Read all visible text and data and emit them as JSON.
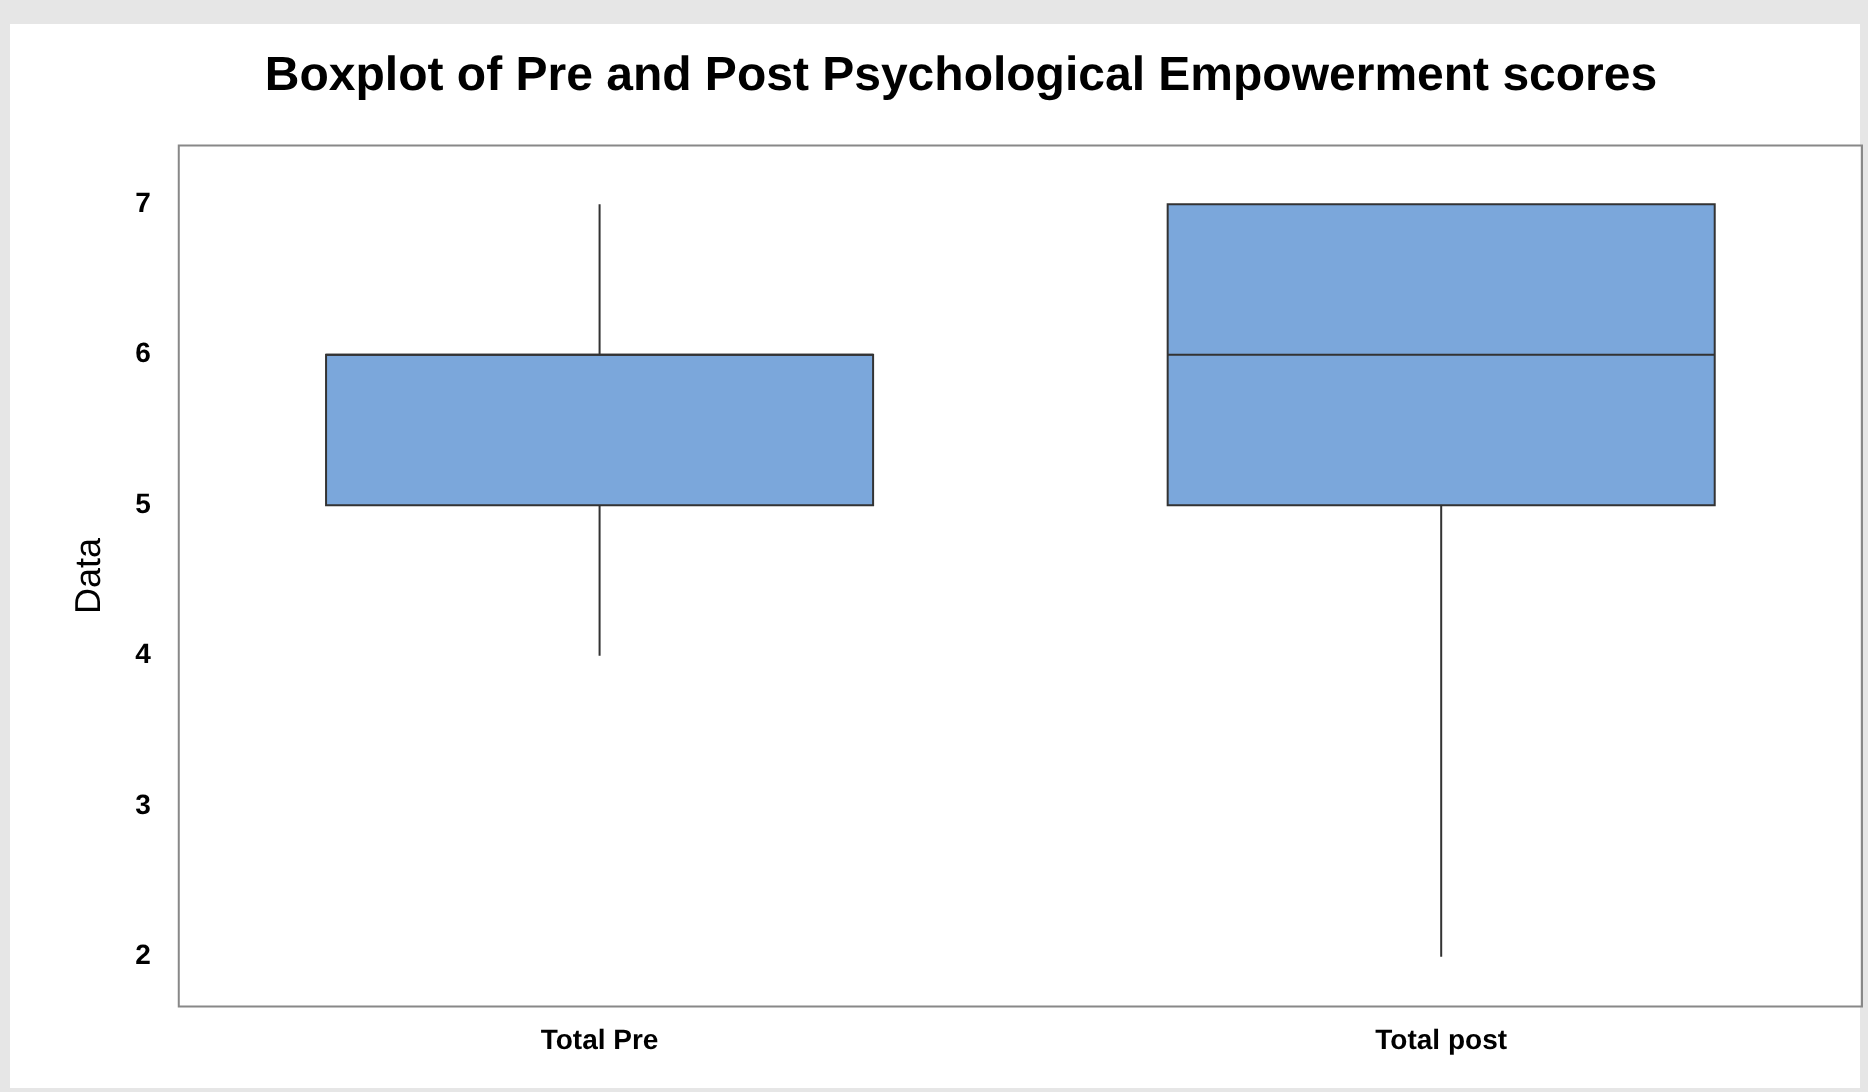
{
  "chart_data": {
    "type": "box",
    "title": "Boxplot of Pre and Post Psychological Empowerment scores",
    "ylabel": "Data",
    "categories": [
      "Total Pre",
      "Total post"
    ],
    "boxes": [
      {
        "low": 4,
        "q1": 5,
        "median": 6,
        "q3": 6,
        "high": 7
      },
      {
        "low": 2,
        "q1": 5,
        "median": 6,
        "q3": 7,
        "high": 7
      }
    ],
    "color": "#7ba7db",
    "ylim": [
      1.67,
      7.39
    ],
    "yticks": [
      2,
      3,
      4,
      5,
      6,
      7
    ]
  }
}
